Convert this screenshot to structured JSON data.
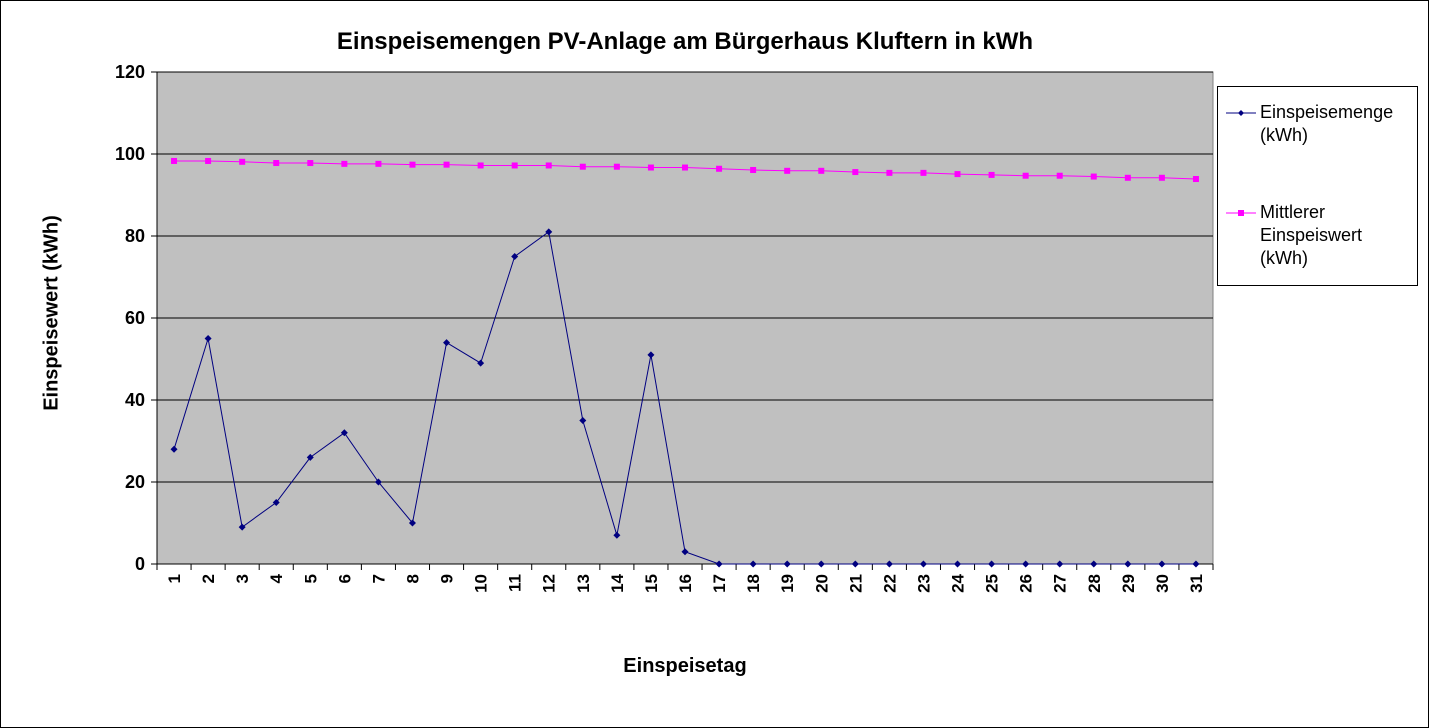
{
  "chart_data": {
    "type": "line",
    "title": "Einspeisemengen PV-Anlage am Bürgerhaus Kluftern in kWh",
    "xlabel": "Einspeisetag",
    "ylabel": "Einspeisewert (kWh)",
    "categories": [
      "1",
      "2",
      "3",
      "4",
      "5",
      "6",
      "7",
      "8",
      "9",
      "10",
      "11",
      "12",
      "13",
      "14",
      "15",
      "16",
      "17",
      "18",
      "19",
      "20",
      "21",
      "22",
      "23",
      "24",
      "25",
      "26",
      "27",
      "28",
      "29",
      "30",
      "31"
    ],
    "ylim": [
      0,
      120
    ],
    "yticks": [
      0,
      20,
      40,
      60,
      80,
      100,
      120
    ],
    "grid": true,
    "legend": "right",
    "series": [
      {
        "name": "Einspeisemenge (kWh)",
        "legend_label": "Einspeisemenge\n(kWh)",
        "color": "#000080",
        "marker": "diamond",
        "values": [
          28,
          55,
          9,
          15,
          26,
          32,
          20,
          10,
          54,
          49,
          75,
          81,
          35,
          7,
          51,
          3,
          0,
          0,
          0,
          0,
          0,
          0,
          0,
          0,
          0,
          0,
          0,
          0,
          0,
          0,
          0
        ]
      },
      {
        "name": "Mittlerer Einspeiswert (kWh)",
        "legend_label": "Mittlerer\nEinspeiswert\n(kWh)",
        "color": "#ff00ff",
        "marker": "square",
        "values": [
          98.3,
          98.3,
          98.1,
          97.8,
          97.8,
          97.6,
          97.6,
          97.4,
          97.4,
          97.2,
          97.2,
          97.2,
          96.9,
          96.9,
          96.7,
          96.7,
          96.4,
          96.1,
          95.9,
          95.9,
          95.6,
          95.4,
          95.4,
          95.1,
          94.9,
          94.7,
          94.7,
          94.5,
          94.2,
          94.2,
          93.9
        ]
      }
    ]
  },
  "colors": {
    "plot_background": "#c0c0c0",
    "gridline": "#000000"
  }
}
